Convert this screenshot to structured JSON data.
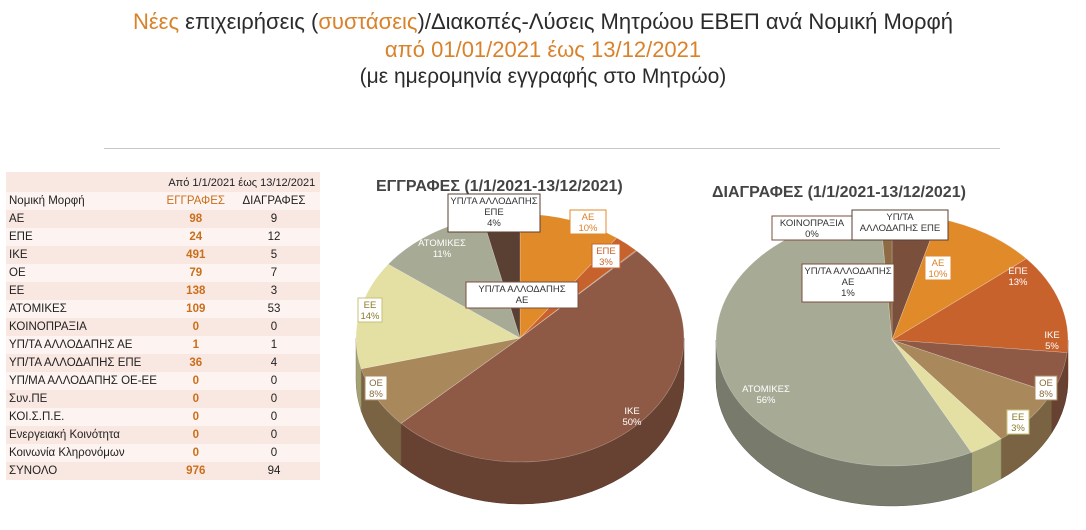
{
  "title": {
    "line1_a": "Νέες",
    "line1_b": " επιχειρήσεις (",
    "line1_c": "συστάσεις",
    "line1_d": ")/Διακοπές-Λύσεις Μητρώου ΕΒΕΠ ανά Νομική Μορφή",
    "line2": "από 01/01/2021 έως 13/12/2021",
    "line3": "(με ημερομηνία εγγραφής στο Μητρώο)"
  },
  "table": {
    "period": "Από  1/1/2021 έως 13/12/2021",
    "col1": "Νομική Μορφή",
    "col2": "ΕΓΓΡΑΦΕΣ",
    "col3": "ΔΙΑΓΡΑΦΕΣ",
    "rows": [
      {
        "form": "ΑΕ",
        "reg": "98",
        "del": "9"
      },
      {
        "form": "ΕΠΕ",
        "reg": "24",
        "del": "12"
      },
      {
        "form": "ΙΚΕ",
        "reg": "491",
        "del": "5"
      },
      {
        "form": "ΟΕ",
        "reg": "79",
        "del": "7"
      },
      {
        "form": "ΕΕ",
        "reg": "138",
        "del": "3"
      },
      {
        "form": "ΑΤΟΜΙΚΕΣ",
        "reg": "109",
        "del": "53"
      },
      {
        "form": "ΚΟΙΝΟΠΡΑΞΙΑ",
        "reg": "0",
        "del": "0"
      },
      {
        "form": "ΥΠ/ΤΑ ΑΛΛΟΔΑΠΗΣ ΑΕ",
        "reg": "1",
        "del": "1"
      },
      {
        "form": "ΥΠ/ΤΑ ΑΛΛΟΔΑΠΗΣ ΕΠΕ",
        "reg": "36",
        "del": "4"
      },
      {
        "form": "ΥΠ/ΜΑ ΑΛΛΟΔΑΠΗΣ ΟΕ-ΕΕ",
        "reg": "0",
        "del": "0"
      },
      {
        "form": "Συν.ΠΕ",
        "reg": "0",
        "del": "0"
      },
      {
        "form": "ΚΟΙ.Σ.Π.Ε.",
        "reg": "0",
        "del": "0"
      },
      {
        "form": "Ενεργειακή Κοινότητα",
        "reg": "0",
        "del": "0"
      },
      {
        "form": "Κοινωνία Κληρονόμων",
        "reg": "0",
        "del": "0"
      }
    ],
    "total": {
      "form": "ΣΥΝΟΛΟ",
      "reg": "976",
      "del": "94"
    }
  },
  "chart_data": [
    {
      "type": "pie",
      "title": "ΕΓΓΡΑΦΕΣ (1/1/2021-13/12/2021)",
      "slices": [
        {
          "label": "ΑΕ",
          "pct": "10%",
          "value": 98,
          "color": "#e08a2a",
          "text_color": "#ffffff"
        },
        {
          "label": "ΕΠΕ",
          "pct": "3%",
          "value": 24,
          "color": "#c8622d",
          "text_color": "#ffffff"
        },
        {
          "label": "ΥΠ/ΤΑ ΑΛΛΟΔΑΠΗΣ ΑΕ",
          "pct": "",
          "value": 1,
          "color": "#8e6a45",
          "text_color": "#333333"
        },
        {
          "label": "ΙΚΕ",
          "pct": "50%",
          "value": 491,
          "color": "#8f5a45",
          "text_color": "#ffffff"
        },
        {
          "label": "ΟΕ",
          "pct": "8%",
          "value": 79,
          "color": "#a9895c",
          "text_color": "#ffffff"
        },
        {
          "label": "ΕΕ",
          "pct": "14%",
          "value": 138,
          "color": "#e4dfa2",
          "text_color": "#8a7a2a"
        },
        {
          "label": "ΑΤΟΜΙΚΕΣ",
          "pct": "11%",
          "value": 109,
          "color": "#a7aa95",
          "text_color": "#ffffff"
        },
        {
          "label": "ΥΠ/ΤΑ ΑΛΛΟΔΑΠΗΣ ΕΠΕ",
          "pct": "4%",
          "value": 36,
          "color": "#5a3f33",
          "text_color": "#333333"
        }
      ]
    },
    {
      "type": "pie",
      "title": "ΔΙΑΓΡΑΦΕΣ (1/1/2021-13/12/2021)",
      "slices": [
        {
          "label": "ΥΠ/ΤΑ ΑΛΛΟΔΑΠΗΣ ΕΠΕ",
          "pct": "",
          "value": 4,
          "color": "#7a4f3c",
          "text_color": "#333333"
        },
        {
          "label": "ΑΕ",
          "pct": "10%",
          "value": 9,
          "color": "#e08a2a",
          "text_color": "#ffffff"
        },
        {
          "label": "ΕΠΕ",
          "pct": "13%",
          "value": 12,
          "color": "#c8622d",
          "text_color": "#ffffff"
        },
        {
          "label": "ΙΚΕ",
          "pct": "5%",
          "value": 5,
          "color": "#8f5a45",
          "text_color": "#ffffff"
        },
        {
          "label": "ΟΕ",
          "pct": "8%",
          "value": 7,
          "color": "#a9895c",
          "text_color": "#ffffff"
        },
        {
          "label": "ΕΕ",
          "pct": "3%",
          "value": 3,
          "color": "#e4dfa2",
          "text_color": "#8a7a2a"
        },
        {
          "label": "ΑΤΟΜΙΚΕΣ",
          "pct": "56%",
          "value": 53,
          "color": "#a7aa95",
          "text_color": "#ffffff"
        },
        {
          "label": "ΥΠ/ΤΑ ΑΛΛΟΔΑΠΗΣ ΑΕ",
          "pct": "1%",
          "value": 1,
          "color": "#8e6a45",
          "text_color": "#333333"
        },
        {
          "label": "ΚΟΙΝΟΠΡΑΞΙΑ",
          "pct": "0%",
          "value": 0,
          "color": "#e08a2a",
          "text_color": "#333333"
        }
      ]
    }
  ]
}
